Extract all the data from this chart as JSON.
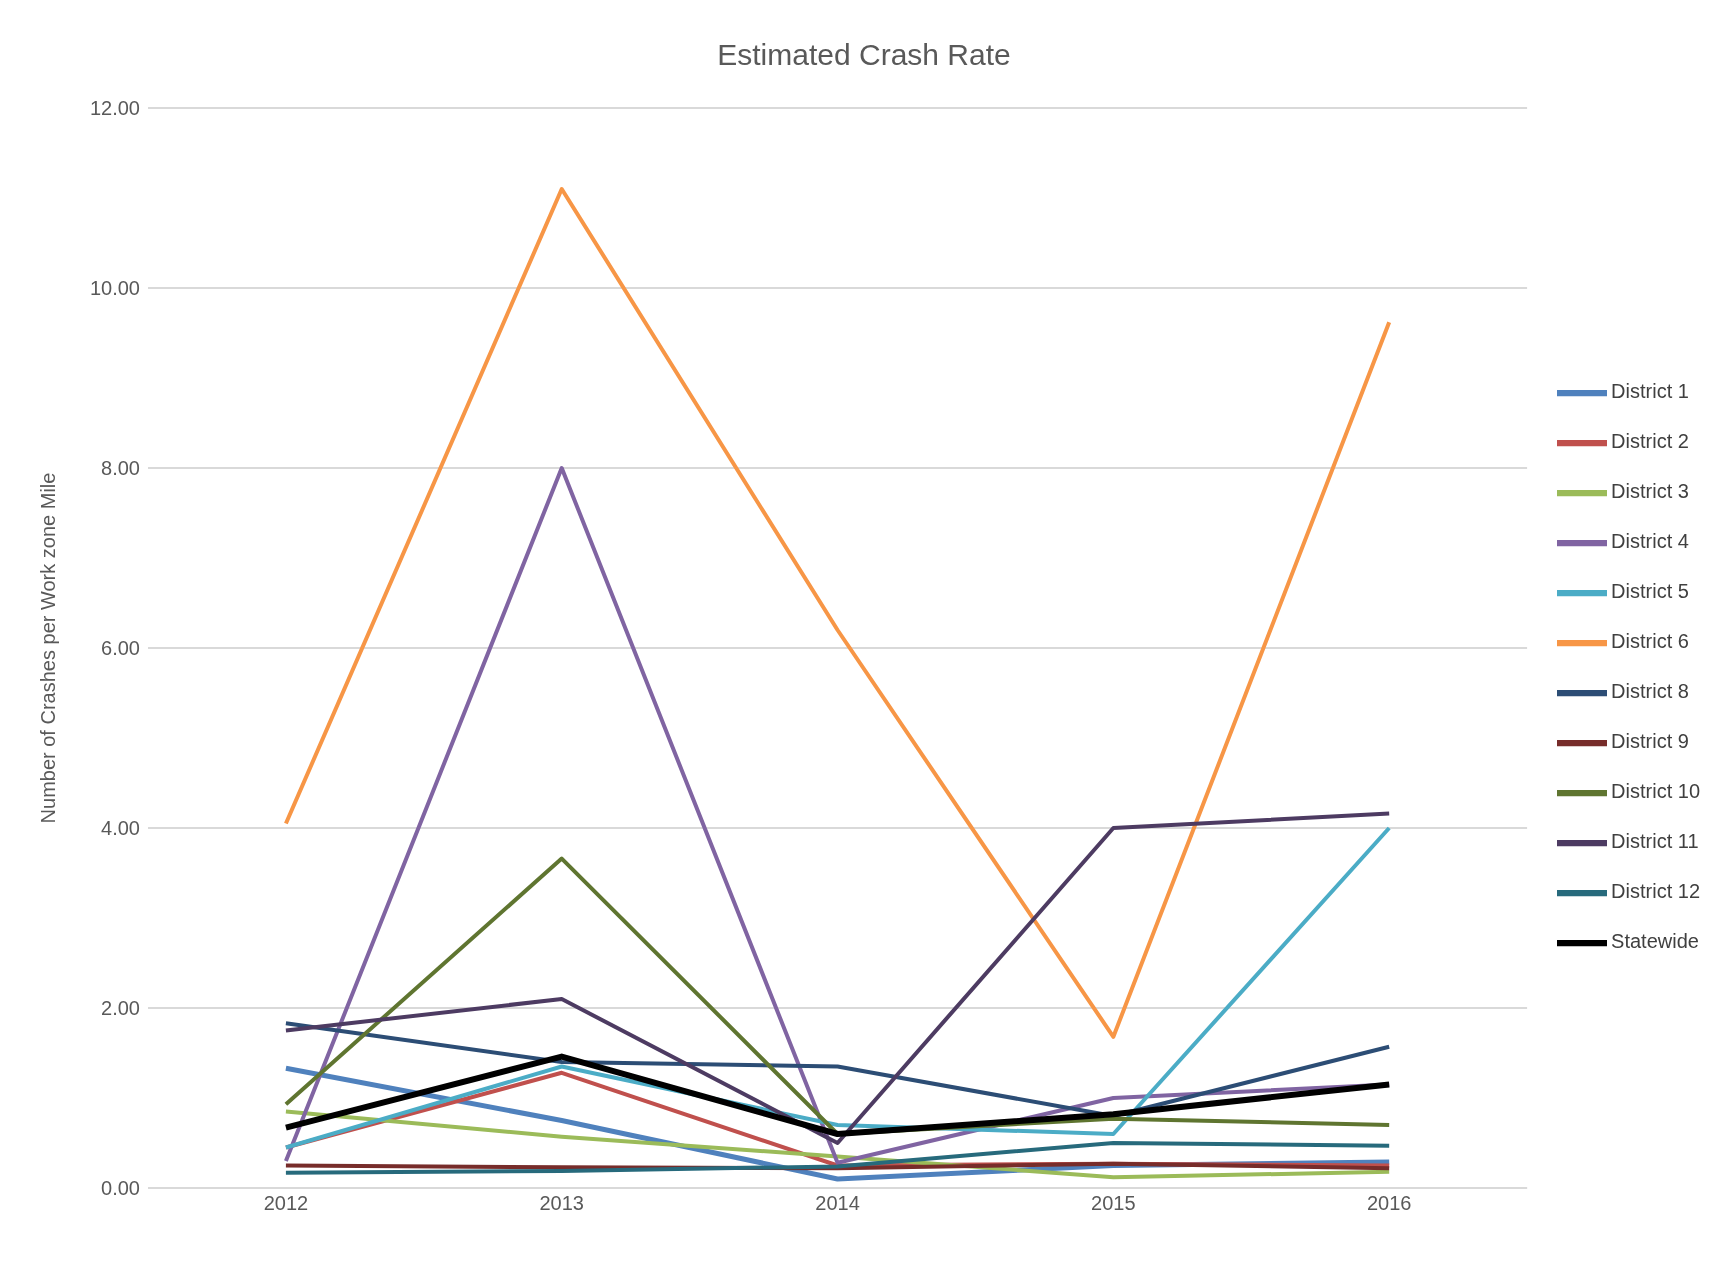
{
  "chart_data": {
    "type": "line",
    "title": "Estimated Crash Rate",
    "ylabel": "Number of Crashes per Work zone Mile",
    "categories": [
      "2012",
      "2013",
      "2014",
      "2015",
      "2016"
    ],
    "ylim": [
      0,
      12
    ],
    "yticks": [
      {
        "value": 0,
        "label": "0.00"
      },
      {
        "value": 2,
        "label": "2.00"
      },
      {
        "value": 4,
        "label": "4.00"
      },
      {
        "value": 6,
        "label": "6.00"
      },
      {
        "value": 8,
        "label": "8.00"
      },
      {
        "value": 10,
        "label": "10.00"
      },
      {
        "value": 12,
        "label": "12.00"
      }
    ],
    "grid": "y",
    "legend": "right",
    "marker": "none",
    "line_style": "solid",
    "series": [
      {
        "name": "District 1",
        "color": "#4f81bd",
        "values": [
          1.33,
          0.75,
          0.1,
          0.25,
          0.29
        ]
      },
      {
        "name": "District 2",
        "color": "#c0504d",
        "values": [
          0.45,
          1.28,
          0.25,
          0.27,
          0.25
        ]
      },
      {
        "name": "District 3",
        "color": "#9bbb59",
        "values": [
          0.85,
          0.57,
          0.35,
          0.12,
          0.18
        ]
      },
      {
        "name": "District 4",
        "color": "#8064a2",
        "values": [
          0.3,
          8.0,
          0.28,
          1.0,
          1.15
        ]
      },
      {
        "name": "District 5",
        "color": "#4bacc6",
        "values": [
          0.45,
          1.35,
          0.7,
          0.6,
          4.0
        ]
      },
      {
        "name": "District 6",
        "color": "#f79646",
        "values": [
          4.05,
          11.1,
          6.2,
          1.68,
          9.62
        ]
      },
      {
        "name": "District 8",
        "color": "#2c4d75",
        "values": [
          1.83,
          1.4,
          1.35,
          0.8,
          1.57
        ]
      },
      {
        "name": "District 9",
        "color": "#772c2a",
        "values": [
          0.25,
          0.23,
          0.22,
          0.27,
          0.22
        ]
      },
      {
        "name": "District 10",
        "color": "#5f7530",
        "values": [
          0.93,
          3.66,
          0.6,
          0.77,
          0.7
        ]
      },
      {
        "name": "District 11",
        "color": "#4d3b62",
        "values": [
          1.75,
          2.1,
          0.5,
          4.0,
          4.16
        ]
      },
      {
        "name": "District 12",
        "color": "#276a7c",
        "values": [
          0.17,
          0.19,
          0.24,
          0.5,
          0.47
        ]
      },
      {
        "name": "Statewide",
        "color": "#000000",
        "values": [
          0.67,
          1.46,
          0.6,
          0.82,
          1.15
        ]
      }
    ]
  }
}
